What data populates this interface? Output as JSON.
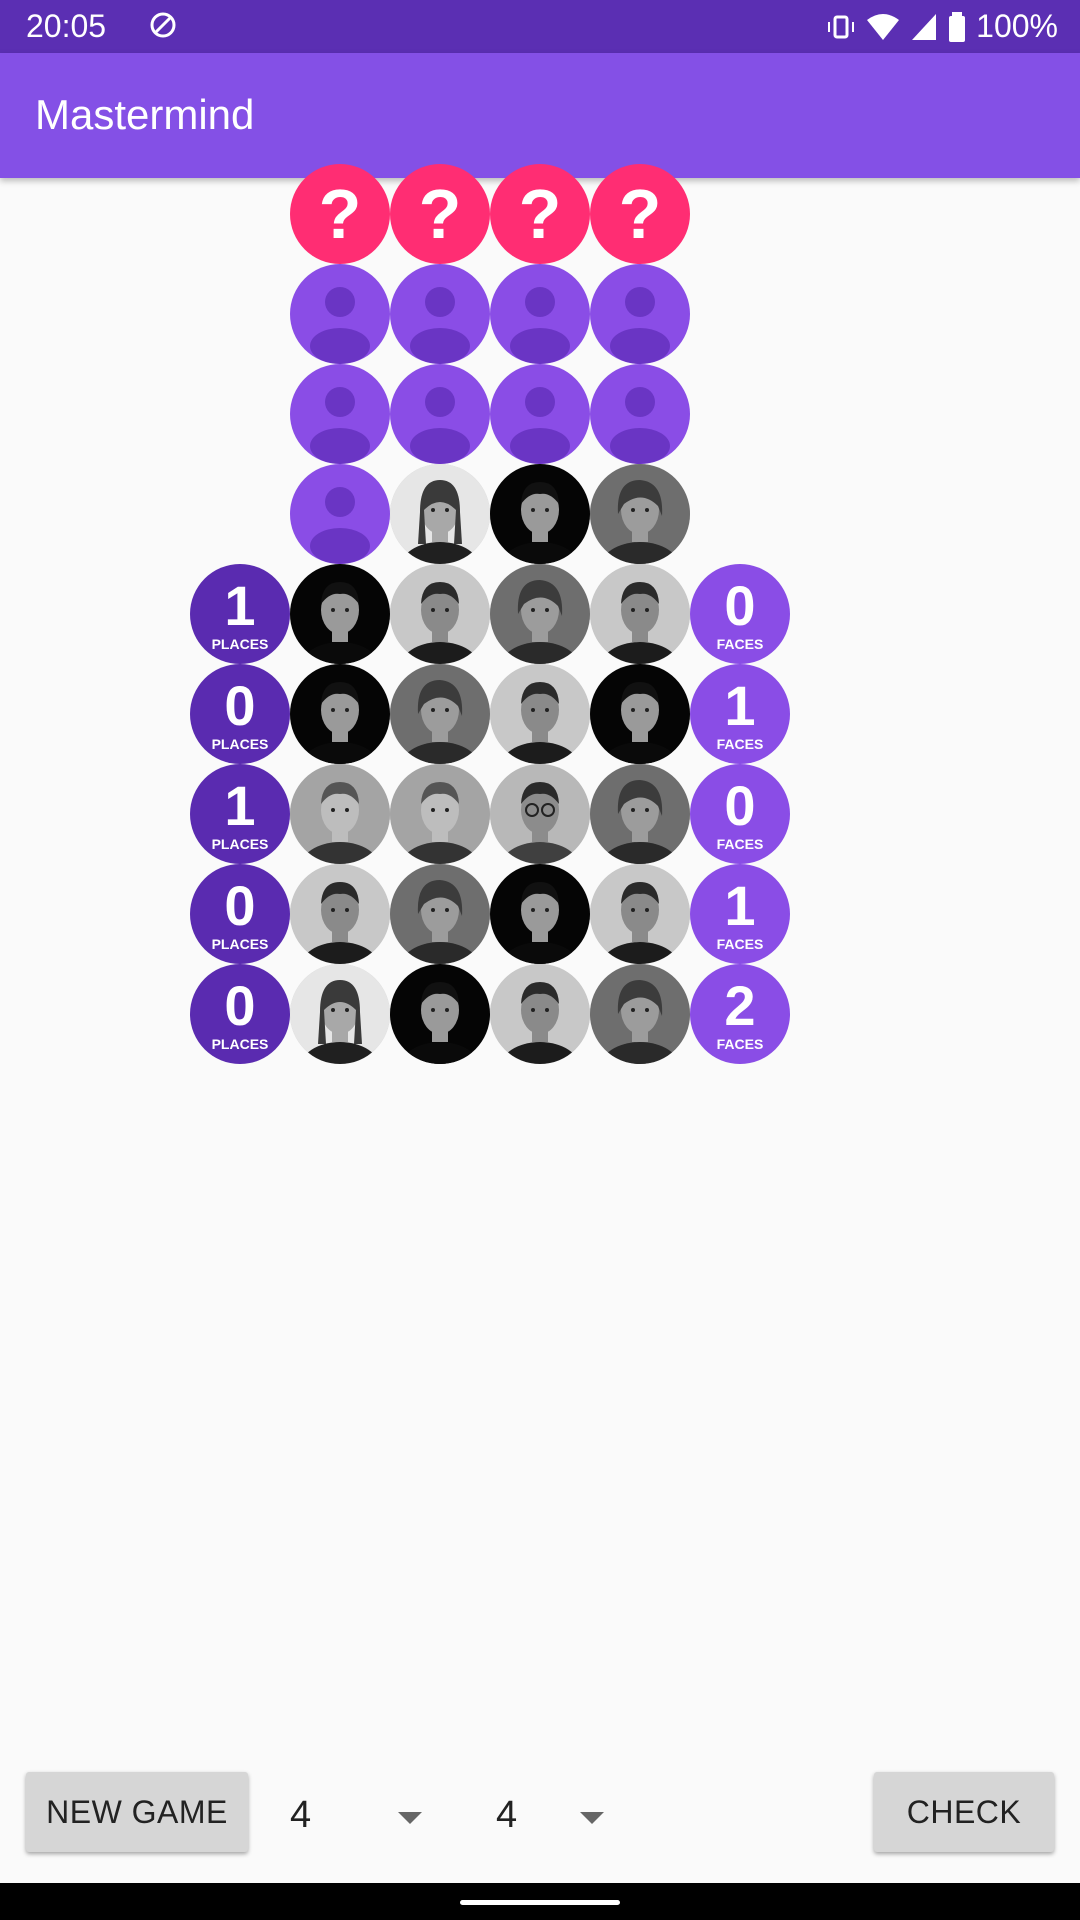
{
  "status": {
    "time": "20:05",
    "battery": "100%"
  },
  "appbar": {
    "title": "Mastermind"
  },
  "board": {
    "secret": [
      "?",
      "?",
      "?",
      "?"
    ],
    "rows": [
      {
        "pegs": [
          "empty",
          "empty",
          "empty",
          "empty"
        ]
      },
      {
        "pegs": [
          "empty",
          "empty",
          "empty",
          "empty"
        ]
      },
      {
        "pegs": [
          "empty",
          "face-woman",
          "face-man-dark",
          "face-man-long-hair"
        ]
      },
      {
        "places": "1",
        "faces": "0",
        "pegs": [
          "face-man-dark",
          "face-man-short",
          "face-man-long-hair",
          "face-man-short"
        ]
      },
      {
        "places": "0",
        "faces": "1",
        "pegs": [
          "face-man-dark",
          "face-man-long-hair",
          "face-man-short",
          "face-man-dark"
        ]
      },
      {
        "places": "1",
        "faces": "0",
        "pegs": [
          "face-man-suit",
          "face-man-suit",
          "face-man-glasses",
          "face-man-long-hair"
        ]
      },
      {
        "places": "0",
        "faces": "1",
        "pegs": [
          "face-man-short",
          "face-man-long-hair",
          "face-man-dark",
          "face-man-short"
        ]
      },
      {
        "places": "0",
        "faces": "2",
        "pegs": [
          "face-woman",
          "face-man-dark",
          "face-man-short",
          "face-man-long-hair"
        ]
      }
    ],
    "places_label": "PLACES",
    "faces_label": "FACES"
  },
  "controls": {
    "new_game": "NEW GAME",
    "spinner_pegs": "4",
    "spinner_colors": "4",
    "check": "CHECK"
  },
  "colors": {
    "secret": "#ff2d73",
    "empty": "#8a4de6",
    "places_badge": "#5a2bb0",
    "faces_badge": "#8a4de6",
    "appbar": "#8450e6",
    "statusbar": "#5b2fb3"
  }
}
